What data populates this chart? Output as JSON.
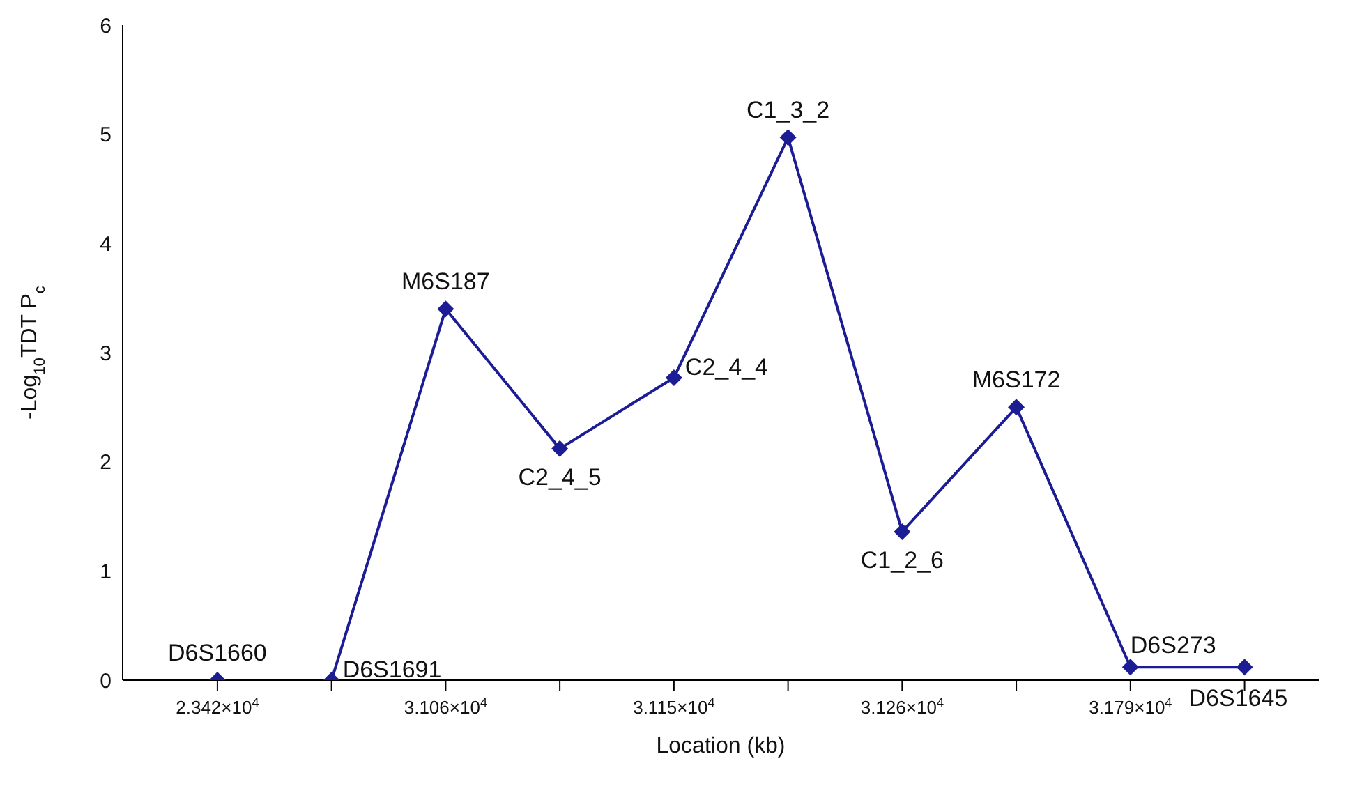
{
  "chart_data": {
    "type": "line",
    "xlabel": "Location (kb)",
    "ylabel": "-Log$_{10}$TDT P$_{c}$",
    "categories": [
      "2.342×10$^{4}$",
      null,
      "3.106×10$^{4}$",
      null,
      "3.115×10$^{4}$",
      null,
      "3.126×10$^{4}$",
      null,
      "3.179×10$^{4}$",
      null
    ],
    "series": [
      {
        "color": "#1c1c94",
        "values": [
          0,
          0,
          3.4,
          2.12,
          2.77,
          4.97,
          1.36,
          2.5,
          0.12,
          0.12
        ],
        "value_labels": [
          "D6S1660",
          "D6S1691",
          "M6S187",
          "C2_4_5",
          "C2_4_4",
          "C1_3_2",
          "C1_2_6",
          "M6S172",
          "D6S273",
          "D6S1645"
        ]
      }
    ],
    "ylim": [
      0,
      6
    ],
    "yticks": [
      0,
      1,
      2,
      3,
      4,
      5,
      6
    ],
    "marker": "diamond",
    "line_style": "solid",
    "grid": false
  }
}
